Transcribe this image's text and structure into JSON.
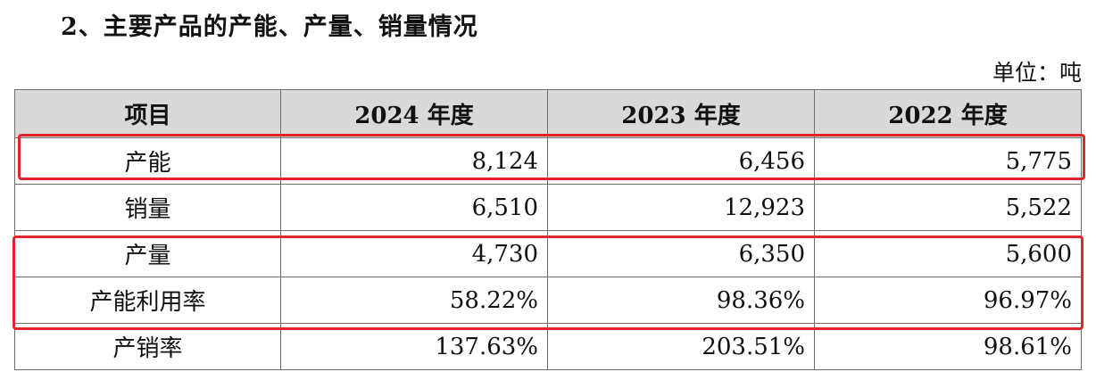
{
  "heading": "2、主要产品的产能、产量、销量情况",
  "unit": "单位：吨",
  "table": {
    "headers": [
      "项目",
      "2024 年度",
      "2023 年度",
      "2022 年度"
    ],
    "rows": [
      {
        "label": "产能",
        "values": [
          "8,124",
          "6,456",
          "5,775"
        ]
      },
      {
        "label": "销量",
        "values": [
          "6,510",
          "12,923",
          "5,522"
        ]
      },
      {
        "label": "产量",
        "values": [
          "4,730",
          "6,350",
          "5,600"
        ]
      },
      {
        "label": "产能利用率",
        "values": [
          "58.22%",
          "98.36%",
          "96.97%"
        ]
      },
      {
        "label": "产销率",
        "values": [
          "137.63%",
          "203.51%",
          "98.61%"
        ]
      }
    ]
  },
  "highlight_color": "#e0262a",
  "header_bg": "#d9d9d9"
}
